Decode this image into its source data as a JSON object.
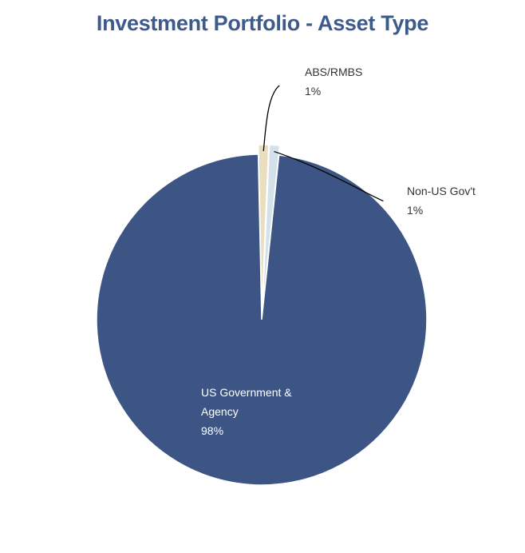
{
  "chart_data": {
    "type": "pie",
    "title": "Investment Portfolio - Asset Type",
    "slices": [
      {
        "name": "US Government & Agency",
        "label_lines": [
          "US Government &",
          "Agency"
        ],
        "percent_label": "98%",
        "value": 98,
        "color": "#3d5584"
      },
      {
        "name": "ABS/RMBS",
        "label_lines": [
          "ABS/RMBS"
        ],
        "percent_label": "1%",
        "value": 1,
        "color": "#e8dfc1"
      },
      {
        "name": "Non-US Gov't",
        "label_lines": [
          "Non-US Gov't"
        ],
        "percent_label": "1%",
        "value": 1,
        "color": "#d3e1ea"
      }
    ],
    "legend": "none"
  }
}
